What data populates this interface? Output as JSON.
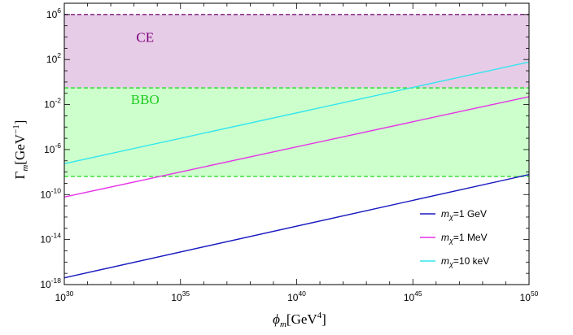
{
  "chart_data": {
    "type": "line",
    "xscale": "log",
    "yscale": "log",
    "xlim": [
      1e+30,
      1e+50
    ],
    "ylim": [
      1e-18,
      10000000.0
    ],
    "xlabel": {
      "symbol": "ϕ",
      "sub": "m",
      "unit": "[GeV",
      "unit_exp": "4",
      "unit_end": "]"
    },
    "ylabel": {
      "symbol": "Γ",
      "sub": "m",
      "unit": "[GeV",
      "unit_exp": "−1",
      "unit_end": "]"
    },
    "xticks": [
      {
        "value": 1e+30,
        "base": "10",
        "exp": "30"
      },
      {
        "value": 1e+35,
        "base": "10",
        "exp": "35"
      },
      {
        "value": 1e+40,
        "base": "10",
        "exp": "40"
      },
      {
        "value": 1e+45,
        "base": "10",
        "exp": "45"
      },
      {
        "value": 1e+50,
        "base": "10",
        "exp": "50"
      }
    ],
    "yticks": [
      {
        "value": 1e-18,
        "base": "10",
        "exp": "-18"
      },
      {
        "value": 1e-14,
        "base": "10",
        "exp": "-14"
      },
      {
        "value": 1e-10,
        "base": "10",
        "exp": "-10"
      },
      {
        "value": 1e-06,
        "base": "10",
        "exp": "-6"
      },
      {
        "value": 0.01,
        "base": "10",
        "exp": "-2"
      },
      {
        "value": 100,
        "base": "10",
        "exp": "2"
      },
      {
        "value": 1000000,
        "base": "10",
        "exp": "6"
      }
    ],
    "bands": [
      {
        "label": "CE",
        "ymin": 0.1,
        "ymax": 1000000,
        "fill": "#e6cce6",
        "edge": "#7b1a7b",
        "label_color": "#800080",
        "label_x": 3e+33,
        "label_y": 10000.0
      },
      {
        "label": "BBO",
        "ymin": 4e-09,
        "ymax": 0.3,
        "fill": "#ccffcc",
        "edge": "#33dd33",
        "label_color": "#22cc22",
        "label_x": 3e+33,
        "label_y": 0.03
      }
    ],
    "band_label_exponents": {},
    "series": [
      {
        "name": "1 GeV",
        "color": "#1a1abf",
        "points": [
          [
            1e+30,
            4e-18
          ],
          [
            1e+50,
            6e-09
          ]
        ]
      },
      {
        "name": "1 MeV",
        "color": "#e633e6",
        "points": [
          [
            1e+30,
            6e-11
          ],
          [
            1e+50,
            0.05
          ]
        ]
      },
      {
        "name": "10 keV",
        "color": "#33e6ee",
        "points": [
          [
            1e+30,
            5.5e-08
          ],
          [
            1e+50,
            60
          ]
        ]
      }
    ],
    "legend": {
      "placement": "bottom-right",
      "prefix_symbol": "m",
      "prefix_sub": "χ",
      "prefix_eq": "="
    },
    "grid": false
  }
}
